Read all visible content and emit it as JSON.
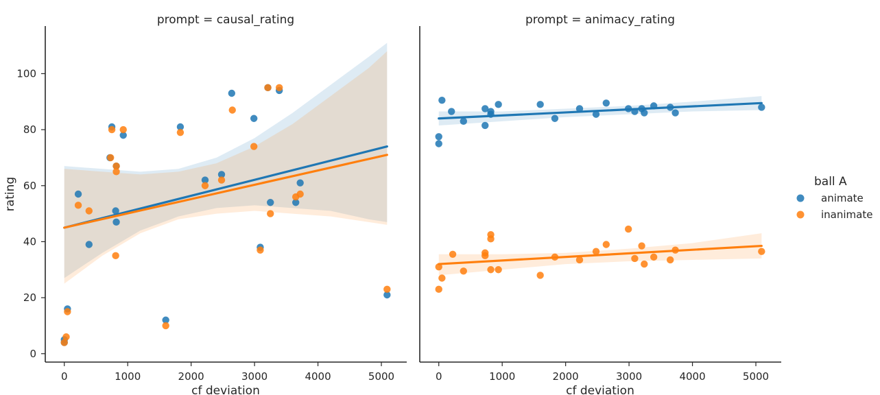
{
  "chart_data": {
    "type": "scatter",
    "xlabel": "cf  deviation",
    "ylabel": "rating",
    "legend": {
      "title": "ball A",
      "placement": "right",
      "entries": [
        {
          "name": "animate",
          "color": "#1f77b4"
        },
        {
          "name": "inanimate",
          "color": "#ff7f0e"
        }
      ]
    },
    "panels": [
      {
        "title": "prompt = causal_rating",
        "xlim": [
          -300,
          5400
        ],
        "ylim": [
          -3,
          117
        ],
        "xticks": [
          0,
          1000,
          2000,
          3000,
          4000,
          5000
        ],
        "yticks": [
          0,
          20,
          40,
          60,
          80,
          100
        ],
        "series": [
          {
            "name": "animate",
            "color": "#1f77b4",
            "points": [
              [
                0,
                5
              ],
              [
                0,
                4
              ],
              [
                50,
                16
              ],
              [
                220,
                57
              ],
              [
                390,
                39
              ],
              [
                720,
                70
              ],
              [
                750,
                81
              ],
              [
                810,
                51
              ],
              [
                820,
                47
              ],
              [
                820,
                67
              ],
              [
                930,
                78
              ],
              [
                1600,
                12
              ],
              [
                1830,
                81
              ],
              [
                2220,
                62
              ],
              [
                2480,
                64
              ],
              [
                2640,
                93
              ],
              [
                2990,
                84
              ],
              [
                3090,
                38
              ],
              [
                3210,
                95
              ],
              [
                3250,
                54
              ],
              [
                3390,
                94
              ],
              [
                3650,
                54
              ],
              [
                3720,
                61
              ],
              [
                5090,
                21
              ]
            ],
            "fit_line": [
              [
                0,
                45
              ],
              [
                5090,
                74
              ]
            ],
            "ci_upper": [
              [
                0,
                67
              ],
              [
                600,
                66
              ],
              [
                1200,
                65
              ],
              [
                1800,
                66
              ],
              [
                2400,
                70
              ],
              [
                3000,
                77
              ],
              [
                3600,
                86
              ],
              [
                4200,
                96
              ],
              [
                4800,
                106
              ],
              [
                5090,
                111
              ]
            ],
            "ci_lower": [
              [
                0,
                27
              ],
              [
                600,
                36
              ],
              [
                1200,
                44
              ],
              [
                1800,
                49
              ],
              [
                2400,
                52
              ],
              [
                3000,
                53
              ],
              [
                3600,
                52
              ],
              [
                4200,
                51
              ],
              [
                4800,
                48
              ],
              [
                5090,
                47
              ]
            ]
          },
          {
            "name": "inanimate",
            "color": "#ff7f0e",
            "points": [
              [
                0,
                4
              ],
              [
                30,
                6
              ],
              [
                50,
                15
              ],
              [
                220,
                53
              ],
              [
                390,
                51
              ],
              [
                730,
                70
              ],
              [
                750,
                80
              ],
              [
                810,
                35
              ],
              [
                820,
                67
              ],
              [
                820,
                65
              ],
              [
                930,
                80
              ],
              [
                1600,
                10
              ],
              [
                1830,
                79
              ],
              [
                2220,
                60
              ],
              [
                2480,
                62
              ],
              [
                2650,
                87
              ],
              [
                2990,
                74
              ],
              [
                3090,
                37
              ],
              [
                3210,
                95
              ],
              [
                3250,
                50
              ],
              [
                3390,
                95
              ],
              [
                3650,
                56
              ],
              [
                3720,
                57
              ],
              [
                5090,
                23
              ]
            ],
            "fit_line": [
              [
                0,
                45
              ],
              [
                5090,
                71
              ]
            ],
            "ci_upper": [
              [
                0,
                66
              ],
              [
                600,
                65
              ],
              [
                1200,
                64
              ],
              [
                1800,
                65
              ],
              [
                2400,
                68
              ],
              [
                3000,
                74
              ],
              [
                3600,
                82
              ],
              [
                4200,
                92
              ],
              [
                4800,
                102
              ],
              [
                5090,
                108
              ]
            ],
            "ci_lower": [
              [
                0,
                25
              ],
              [
                600,
                35
              ],
              [
                1200,
                43
              ],
              [
                1800,
                48
              ],
              [
                2400,
                50
              ],
              [
                3000,
                51
              ],
              [
                3600,
                50
              ],
              [
                4200,
                49
              ],
              [
                4800,
                47
              ],
              [
                5090,
                46
              ]
            ]
          }
        ]
      },
      {
        "title": "prompt = animacy_rating",
        "xlim": [
          -300,
          5400
        ],
        "ylim": [
          -3,
          117
        ],
        "xticks": [
          0,
          1000,
          2000,
          3000,
          4000,
          5000
        ],
        "yticks": [
          0,
          20,
          40,
          60,
          80,
          100
        ],
        "series": [
          {
            "name": "animate",
            "color": "#1f77b4",
            "points": [
              [
                0,
                77.5
              ],
              [
                0,
                75
              ],
              [
                50,
                90.5
              ],
              [
                200,
                86.5
              ],
              [
                390,
                83
              ],
              [
                730,
                87.5
              ],
              [
                730,
                81.5
              ],
              [
                820,
                86.5
              ],
              [
                820,
                85.5
              ],
              [
                940,
                89
              ],
              [
                1600,
                89
              ],
              [
                1830,
                84
              ],
              [
                2220,
                87.5
              ],
              [
                2480,
                85.5
              ],
              [
                2640,
                89.5
              ],
              [
                2990,
                87.5
              ],
              [
                3090,
                86.5
              ],
              [
                3200,
                87.5
              ],
              [
                3240,
                86
              ],
              [
                3390,
                88.5
              ],
              [
                3650,
                88
              ],
              [
                3730,
                86
              ],
              [
                5090,
                88
              ]
            ],
            "fit_line": [
              [
                0,
                84
              ],
              [
                5090,
                89.5
              ]
            ],
            "ci_upper": [
              [
                0,
                86.5
              ],
              [
                1000,
                86.5
              ],
              [
                2000,
                87.5
              ],
              [
                3000,
                88.5
              ],
              [
                4000,
                90
              ],
              [
                5090,
                92
              ]
            ],
            "ci_lower": [
              [
                0,
                81.5
              ],
              [
                1000,
                83
              ],
              [
                2000,
                84.5
              ],
              [
                3000,
                85.5
              ],
              [
                4000,
                86.5
              ],
              [
                5090,
                87
              ]
            ]
          },
          {
            "name": "inanimate",
            "color": "#ff7f0e",
            "points": [
              [
                0,
                23
              ],
              [
                0,
                31
              ],
              [
                50,
                27
              ],
              [
                220,
                35.5
              ],
              [
                390,
                29.5
              ],
              [
                730,
                36
              ],
              [
                730,
                35
              ],
              [
                820,
                42.5
              ],
              [
                820,
                41
              ],
              [
                820,
                30
              ],
              [
                940,
                30
              ],
              [
                1600,
                28
              ],
              [
                1830,
                34.5
              ],
              [
                2220,
                33.5
              ],
              [
                2480,
                36.5
              ],
              [
                2640,
                39
              ],
              [
                2990,
                44.5
              ],
              [
                3090,
                34
              ],
              [
                3200,
                38.5
              ],
              [
                3240,
                32
              ],
              [
                3390,
                34.5
              ],
              [
                3650,
                33.5
              ],
              [
                3730,
                37
              ],
              [
                5090,
                36.5
              ]
            ],
            "fit_line": [
              [
                0,
                32
              ],
              [
                5090,
                38.5
              ]
            ],
            "ci_upper": [
              [
                0,
                35.5
              ],
              [
                1000,
                35.5
              ],
              [
                2000,
                36
              ],
              [
                3000,
                37.5
              ],
              [
                4000,
                39.5
              ],
              [
                5090,
                43
              ]
            ],
            "ci_lower": [
              [
                0,
                28
              ],
              [
                1000,
                30
              ],
              [
                2000,
                32
              ],
              [
                3000,
                33
              ],
              [
                4000,
                33.5
              ],
              [
                5090,
                34
              ]
            ]
          }
        ]
      }
    ]
  }
}
